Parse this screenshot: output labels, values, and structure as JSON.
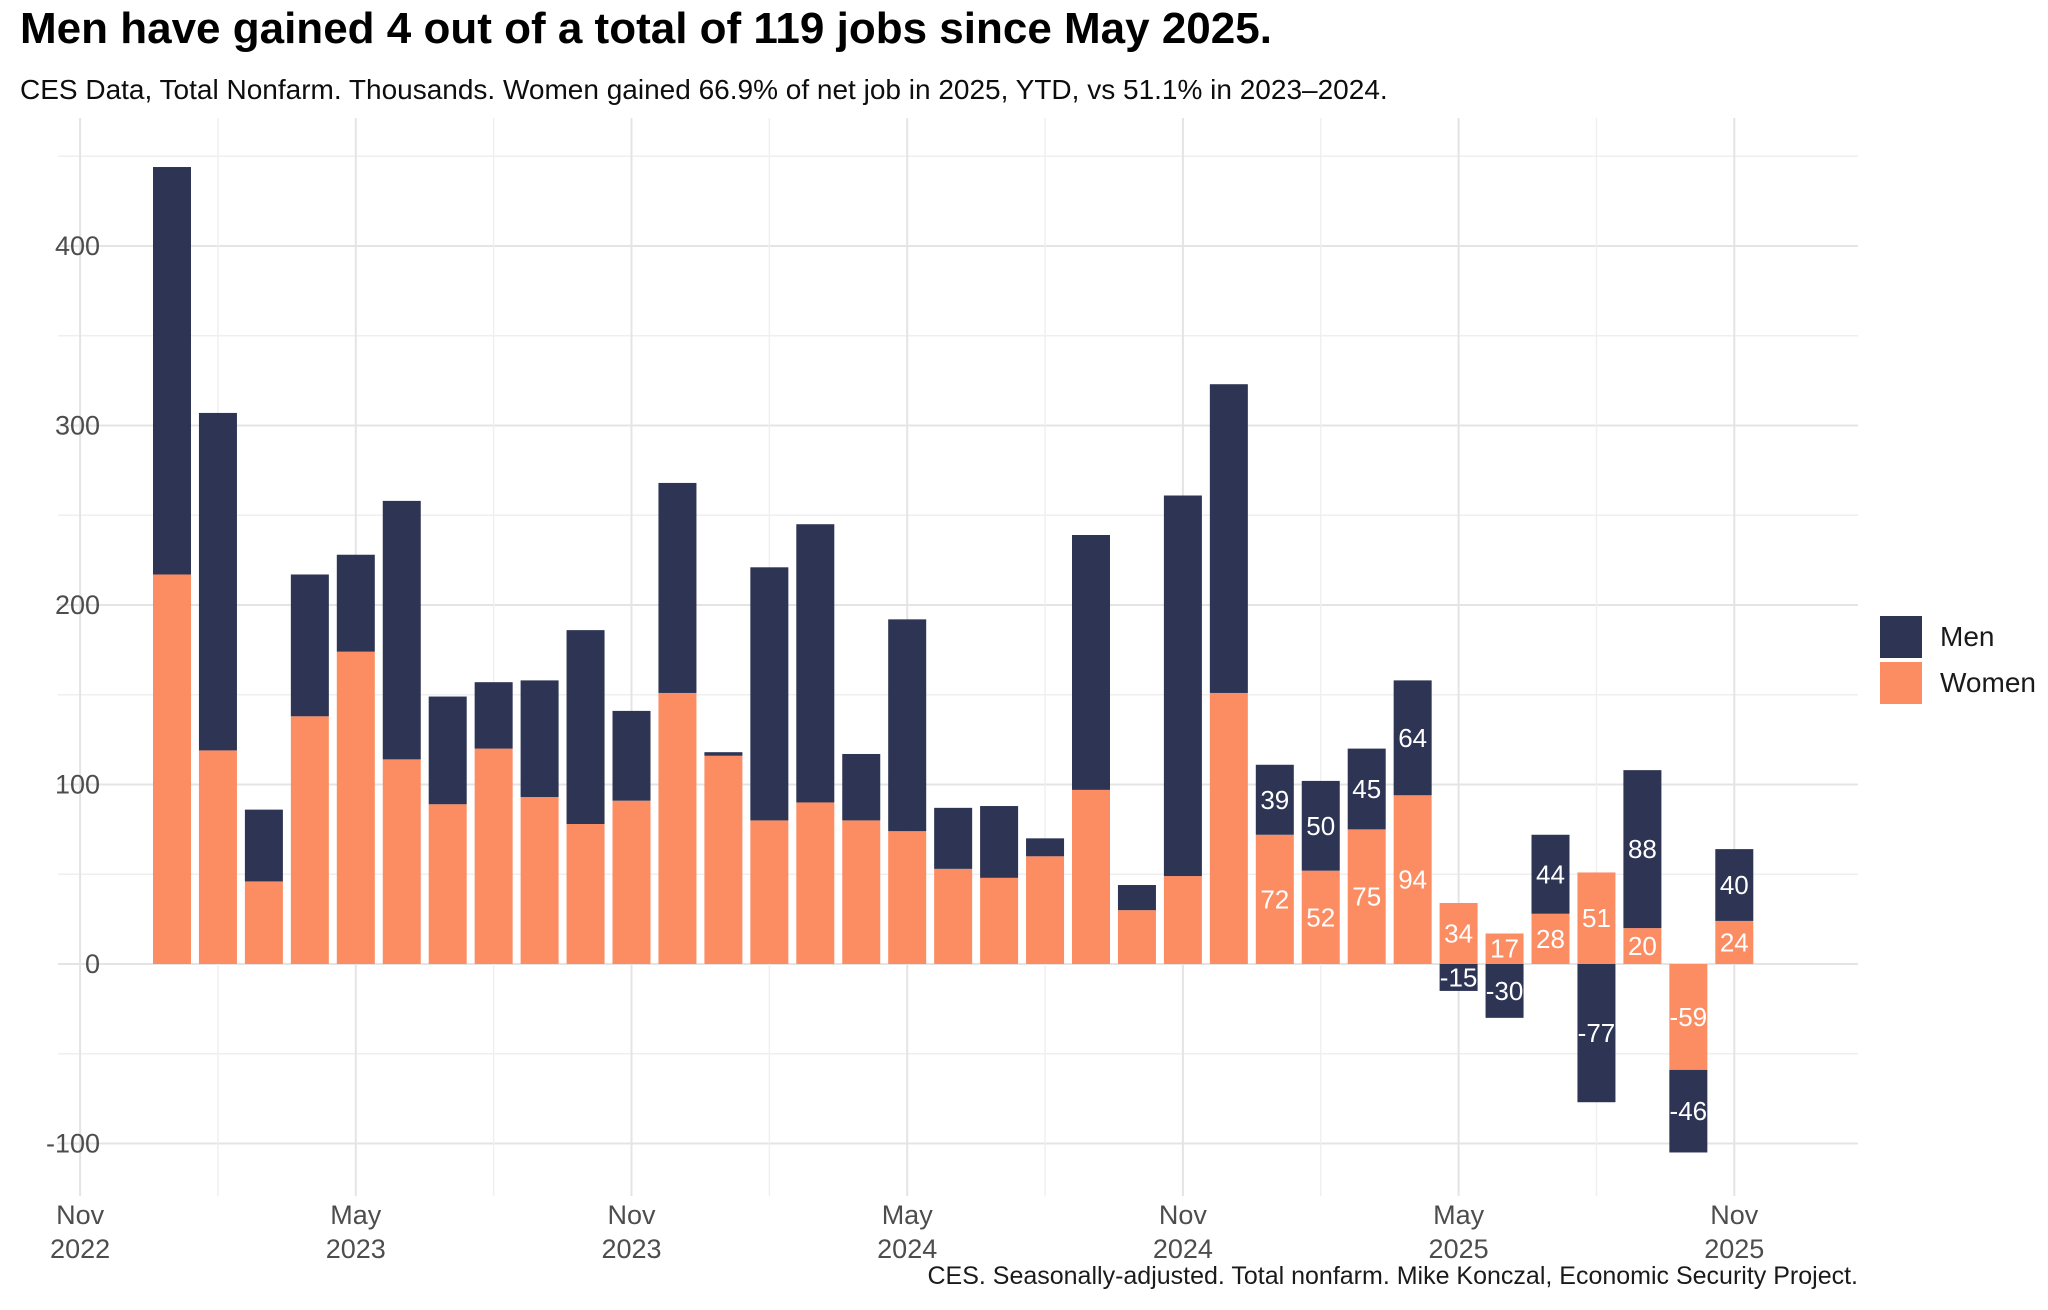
{
  "title": "Men have gained 4 out of a total of 119 jobs since May 2025.",
  "subtitle": "CES Data, Total Nonfarm. Thousands. Women gained 66.9% of net job in 2025, YTD, vs 51.1% in 2023–2024.",
  "caption": "CES. Seasonally-adjusted. Total nonfarm. Mike Konczal, Economic Security Project.",
  "legend": {
    "items": [
      {
        "label": "Men",
        "color": "#2d3454"
      },
      {
        "label": "Women",
        "color": "#fc8d63"
      }
    ]
  },
  "colors": {
    "men": "#2d3454",
    "women": "#fc8d63",
    "axis_text": "#4d4d4d",
    "grid_major": "#e4e4e4",
    "grid_minor": "#efefef",
    "bar_label": "#ffffff",
    "background": "#ffffff"
  },
  "chart_data": {
    "type": "bar",
    "stacked": true,
    "title": "Men have gained 4 out of a total of 119 jobs since May 2025.",
    "subtitle": "CES Data, Total Nonfarm. Thousands. Women gained 66.9% of net job in 2025, YTD, vs 51.1% in 2023–2024.",
    "xlabel": "",
    "ylabel": "",
    "units": "thousands of jobs, monthly change",
    "categories": [
      "Jan 2023",
      "Feb 2023",
      "Mar 2023",
      "Apr 2023",
      "May 2023",
      "Jun 2023",
      "Jul 2023",
      "Aug 2023",
      "Sep 2023",
      "Oct 2023",
      "Nov 2023",
      "Dec 2023",
      "Jan 2024",
      "Feb 2024",
      "Mar 2024",
      "Apr 2024",
      "May 2024",
      "Jun 2024",
      "Jul 2024",
      "Aug 2024",
      "Sep 2024",
      "Oct 2024",
      "Nov 2024",
      "Dec 2024",
      "Jan 2025",
      "Feb 2025",
      "Mar 2025",
      "Apr 2025",
      "May 2025",
      "Jun 2025",
      "Jul 2025",
      "Aug 2025",
      "Sep 2025",
      "Oct 2025",
      "Nov 2025"
    ],
    "series": [
      {
        "name": "Women",
        "color": "#fc8d63",
        "values": [
          217,
          119,
          46,
          138,
          174,
          114,
          89,
          120,
          93,
          78,
          91,
          151,
          116,
          80,
          90,
          80,
          74,
          53,
          48,
          60,
          97,
          30,
          49,
          151,
          72,
          52,
          75,
          94,
          34,
          17,
          28,
          51,
          20,
          -59,
          24
        ]
      },
      {
        "name": "Men",
        "color": "#2d3454",
        "values": [
          227,
          188,
          40,
          79,
          54,
          144,
          60,
          37,
          65,
          108,
          50,
          117,
          2,
          141,
          155,
          37,
          118,
          34,
          40,
          10,
          142,
          14,
          212,
          172,
          39,
          50,
          45,
          64,
          -15,
          -30,
          44,
          -77,
          88,
          -46,
          40
        ]
      }
    ],
    "value_labels_from_index": 24,
    "value_labels_from_month": "Jan 2025",
    "yticks": [
      -100,
      0,
      100,
      200,
      300,
      400
    ],
    "ylim": [
      -132,
      471
    ],
    "grid": "both",
    "legend_position": "right",
    "x_ticks": [
      {
        "line1": "Nov",
        "line2": "2022",
        "month_index": -2
      },
      {
        "line1": "May",
        "line2": "2023",
        "month_index": 4
      },
      {
        "line1": "Nov",
        "line2": "2023",
        "month_index": 10
      },
      {
        "line1": "May",
        "line2": "2024",
        "month_index": 16
      },
      {
        "line1": "Nov",
        "line2": "2024",
        "month_index": 22
      },
      {
        "line1": "May",
        "line2": "2025",
        "month_index": 28
      },
      {
        "line1": "Nov",
        "line2": "2025",
        "month_index": 34
      }
    ]
  }
}
